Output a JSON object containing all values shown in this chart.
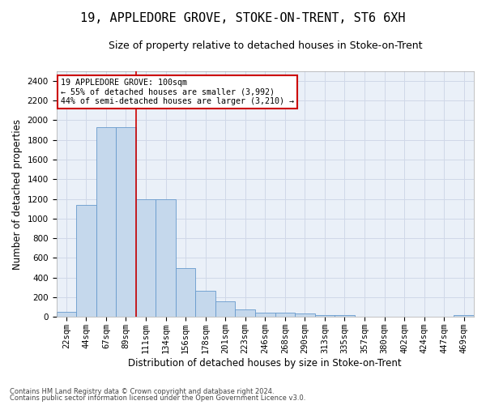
{
  "title": "19, APPLEDORE GROVE, STOKE-ON-TRENT, ST6 6XH",
  "subtitle": "Size of property relative to detached houses in Stoke-on-Trent",
  "xlabel": "Distribution of detached houses by size in Stoke-on-Trent",
  "ylabel": "Number of detached properties",
  "footer_line1": "Contains HM Land Registry data © Crown copyright and database right 2024.",
  "footer_line2": "Contains public sector information licensed under the Open Government Licence v3.0.",
  "annotation_title": "19 APPLEDORE GROVE: 100sqm",
  "annotation_line2": "← 55% of detached houses are smaller (3,992)",
  "annotation_line3": "44% of semi-detached houses are larger (3,210) →",
  "bar_color": "#c5d8ec",
  "bar_edge_color": "#6699cc",
  "vline_color": "#cc0000",
  "vline_x_index": 4,
  "annotation_box_color": "#ffffff",
  "annotation_box_edge": "#cc0000",
  "categories": [
    "22sqm",
    "44sqm",
    "67sqm",
    "89sqm",
    "111sqm",
    "134sqm",
    "156sqm",
    "178sqm",
    "201sqm",
    "223sqm",
    "246sqm",
    "268sqm",
    "290sqm",
    "313sqm",
    "335sqm",
    "357sqm",
    "380sqm",
    "402sqm",
    "424sqm",
    "447sqm",
    "469sqm"
  ],
  "values": [
    50,
    1140,
    1930,
    1930,
    1200,
    1200,
    500,
    265,
    155,
    75,
    45,
    45,
    35,
    15,
    15,
    5,
    5,
    5,
    0,
    0,
    20
  ],
  "ylim": [
    0,
    2500
  ],
  "yticks": [
    0,
    200,
    400,
    600,
    800,
    1000,
    1200,
    1400,
    1600,
    1800,
    2000,
    2200,
    2400
  ],
  "grid_color": "#d0d8e8",
  "background_color": "#eaf0f8",
  "title_fontsize": 11,
  "subtitle_fontsize": 9,
  "axis_label_fontsize": 8.5,
  "tick_fontsize": 7.5,
  "footer_fontsize": 6
}
